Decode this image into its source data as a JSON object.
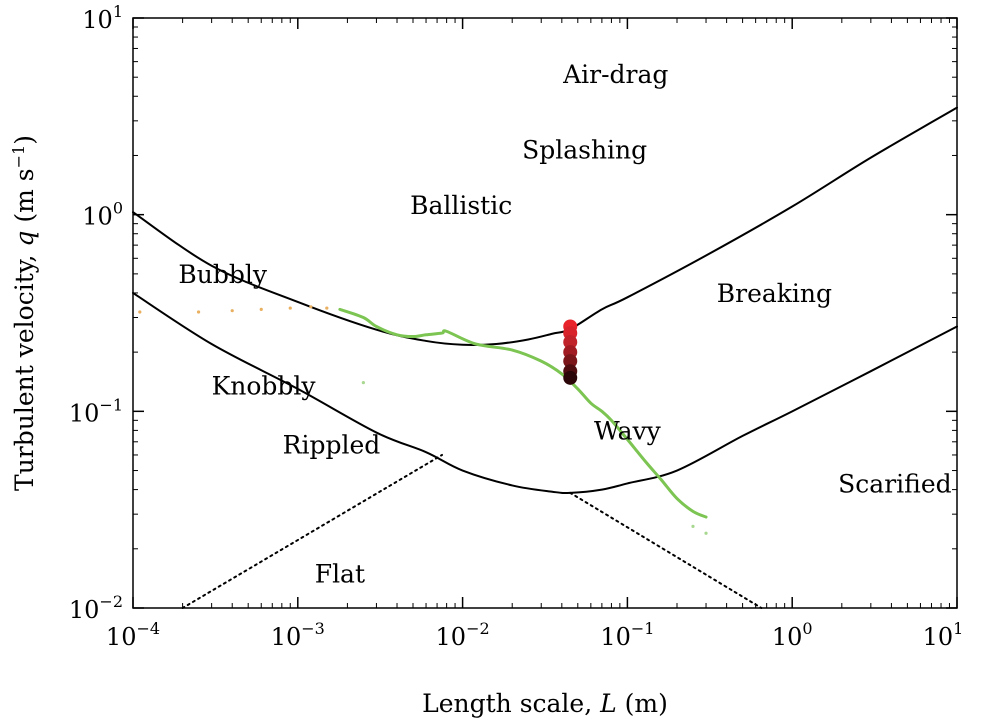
{
  "chart_data": {
    "type": "line",
    "title": "",
    "xlabel_parts": [
      "Length scale, ",
      "L",
      " (m)"
    ],
    "ylabel_parts": [
      "Turbulent velocity, ",
      "q",
      " (m s",
      "−1",
      ")"
    ],
    "xscale": "log",
    "yscale": "log",
    "xlim": [
      0.0001,
      10
    ],
    "ylim": [
      0.01,
      10
    ],
    "grid": false,
    "x_ticks": [
      {
        "value": 0.0001,
        "base": "10",
        "exp": "−4"
      },
      {
        "value": 0.001,
        "base": "10",
        "exp": "−3"
      },
      {
        "value": 0.01,
        "base": "10",
        "exp": "−2"
      },
      {
        "value": 0.1,
        "base": "10",
        "exp": "−1"
      },
      {
        "value": 1,
        "base": "10",
        "exp": "0"
      },
      {
        "value": 10,
        "base": "10",
        "exp": "1"
      }
    ],
    "y_ticks": [
      {
        "value": 0.01,
        "base": "10",
        "exp": "−2"
      },
      {
        "value": 0.1,
        "base": "10",
        "exp": "−1"
      },
      {
        "value": 1,
        "base": "10",
        "exp": "0"
      },
      {
        "value": 10,
        "base": "10",
        "exp": "1"
      }
    ],
    "series": [
      {
        "style": "solid",
        "color": "#000000",
        "points": [
          [
            0.0001,
            1.03
          ],
          [
            0.0003,
            0.55
          ],
          [
            0.001,
            0.36
          ],
          [
            0.003,
            0.26
          ],
          [
            0.006,
            0.228
          ],
          [
            0.01,
            0.218
          ],
          [
            0.016,
            0.22
          ],
          [
            0.025,
            0.232
          ],
          [
            0.035,
            0.248
          ],
          [
            0.045,
            0.262
          ],
          [
            0.07,
            0.33
          ],
          [
            0.1,
            0.38
          ],
          [
            0.3,
            0.62
          ],
          [
            1,
            1.1
          ],
          [
            3,
            1.95
          ],
          [
            10,
            3.5
          ]
        ]
      },
      {
        "style": "solid",
        "color": "#000000",
        "points": [
          [
            0.0001,
            0.4
          ],
          [
            0.0003,
            0.22
          ],
          [
            0.001,
            0.13
          ],
          [
            0.003,
            0.078
          ],
          [
            0.006,
            0.062
          ],
          [
            0.01,
            0.05
          ],
          [
            0.02,
            0.042
          ],
          [
            0.035,
            0.039
          ],
          [
            0.045,
            0.0385
          ],
          [
            0.07,
            0.04
          ],
          [
            0.1,
            0.043
          ],
          [
            0.2,
            0.05
          ],
          [
            0.5,
            0.075
          ],
          [
            1,
            0.1
          ],
          [
            3,
            0.16
          ],
          [
            10,
            0.27
          ]
        ]
      },
      {
        "style": "dotted",
        "color": "#000000",
        "points": [
          [
            0.0002,
            0.01
          ],
          [
            0.0075,
            0.06
          ]
        ]
      },
      {
        "style": "dotted",
        "color": "#000000",
        "points": [
          [
            0.045,
            0.0385
          ],
          [
            0.65,
            0.01
          ]
        ]
      },
      {
        "style": "solid",
        "color": "#7cc552",
        "points": [
          [
            0.0018,
            0.33
          ],
          [
            0.0025,
            0.3
          ],
          [
            0.003,
            0.27
          ],
          [
            0.004,
            0.245
          ],
          [
            0.005,
            0.24
          ],
          [
            0.006,
            0.245
          ],
          [
            0.0075,
            0.25
          ],
          [
            0.008,
            0.255
          ],
          [
            0.012,
            0.22
          ],
          [
            0.02,
            0.205
          ],
          [
            0.03,
            0.18
          ],
          [
            0.04,
            0.155
          ],
          [
            0.05,
            0.13
          ],
          [
            0.06,
            0.11
          ],
          [
            0.07,
            0.1
          ],
          [
            0.08,
            0.09
          ],
          [
            0.1,
            0.072
          ],
          [
            0.13,
            0.055
          ],
          [
            0.16,
            0.045
          ],
          [
            0.2,
            0.036
          ],
          [
            0.25,
            0.031
          ],
          [
            0.3,
            0.029
          ]
        ]
      },
      {
        "style": "dots",
        "color": "#e8b060",
        "points": [
          [
            0.00011,
            0.32
          ],
          [
            0.00025,
            0.32
          ],
          [
            0.0004,
            0.325
          ],
          [
            0.0006,
            0.33
          ],
          [
            0.0009,
            0.335
          ],
          [
            0.0012,
            0.34
          ],
          [
            0.0015,
            0.335
          ]
        ]
      },
      {
        "style": "dots",
        "color": "#a8d890",
        "points": [
          [
            0.25,
            0.026
          ],
          [
            0.3,
            0.024
          ],
          [
            0.0025,
            0.14
          ]
        ]
      }
    ],
    "markers": {
      "x": 0.045,
      "points": [
        {
          "y": 0.27,
          "color": "#e8242a"
        },
        {
          "y": 0.25,
          "color": "#d8232a"
        },
        {
          "y": 0.225,
          "color": "#c0232a"
        },
        {
          "y": 0.2,
          "color": "#a01c22"
        },
        {
          "y": 0.18,
          "color": "#7a151a"
        },
        {
          "y": 0.16,
          "color": "#4f0d10"
        },
        {
          "y": 0.148,
          "color": "#2a0608"
        }
      ]
    },
    "annotations": [
      {
        "text": "Air-drag",
        "x": 0.085,
        "y": 5.2
      },
      {
        "text": "Splashing",
        "x": 0.055,
        "y": 2.15
      },
      {
        "text": "Ballistic",
        "x": 0.0098,
        "y": 1.12
      },
      {
        "text": "Bubbly",
        "x": 0.00035,
        "y": 0.5
      },
      {
        "text": "Breaking",
        "x": 0.78,
        "y": 0.4
      },
      {
        "text": "Knobbly",
        "x": 0.00062,
        "y": 0.135
      },
      {
        "text": "Rippled",
        "x": 0.0016,
        "y": 0.068
      },
      {
        "text": "Wavy",
        "x": 0.1,
        "y": 0.08
      },
      {
        "text": "Scarified",
        "x": 4.2,
        "y": 0.043
      },
      {
        "text": "Flat",
        "x": 0.0018,
        "y": 0.015
      }
    ]
  }
}
